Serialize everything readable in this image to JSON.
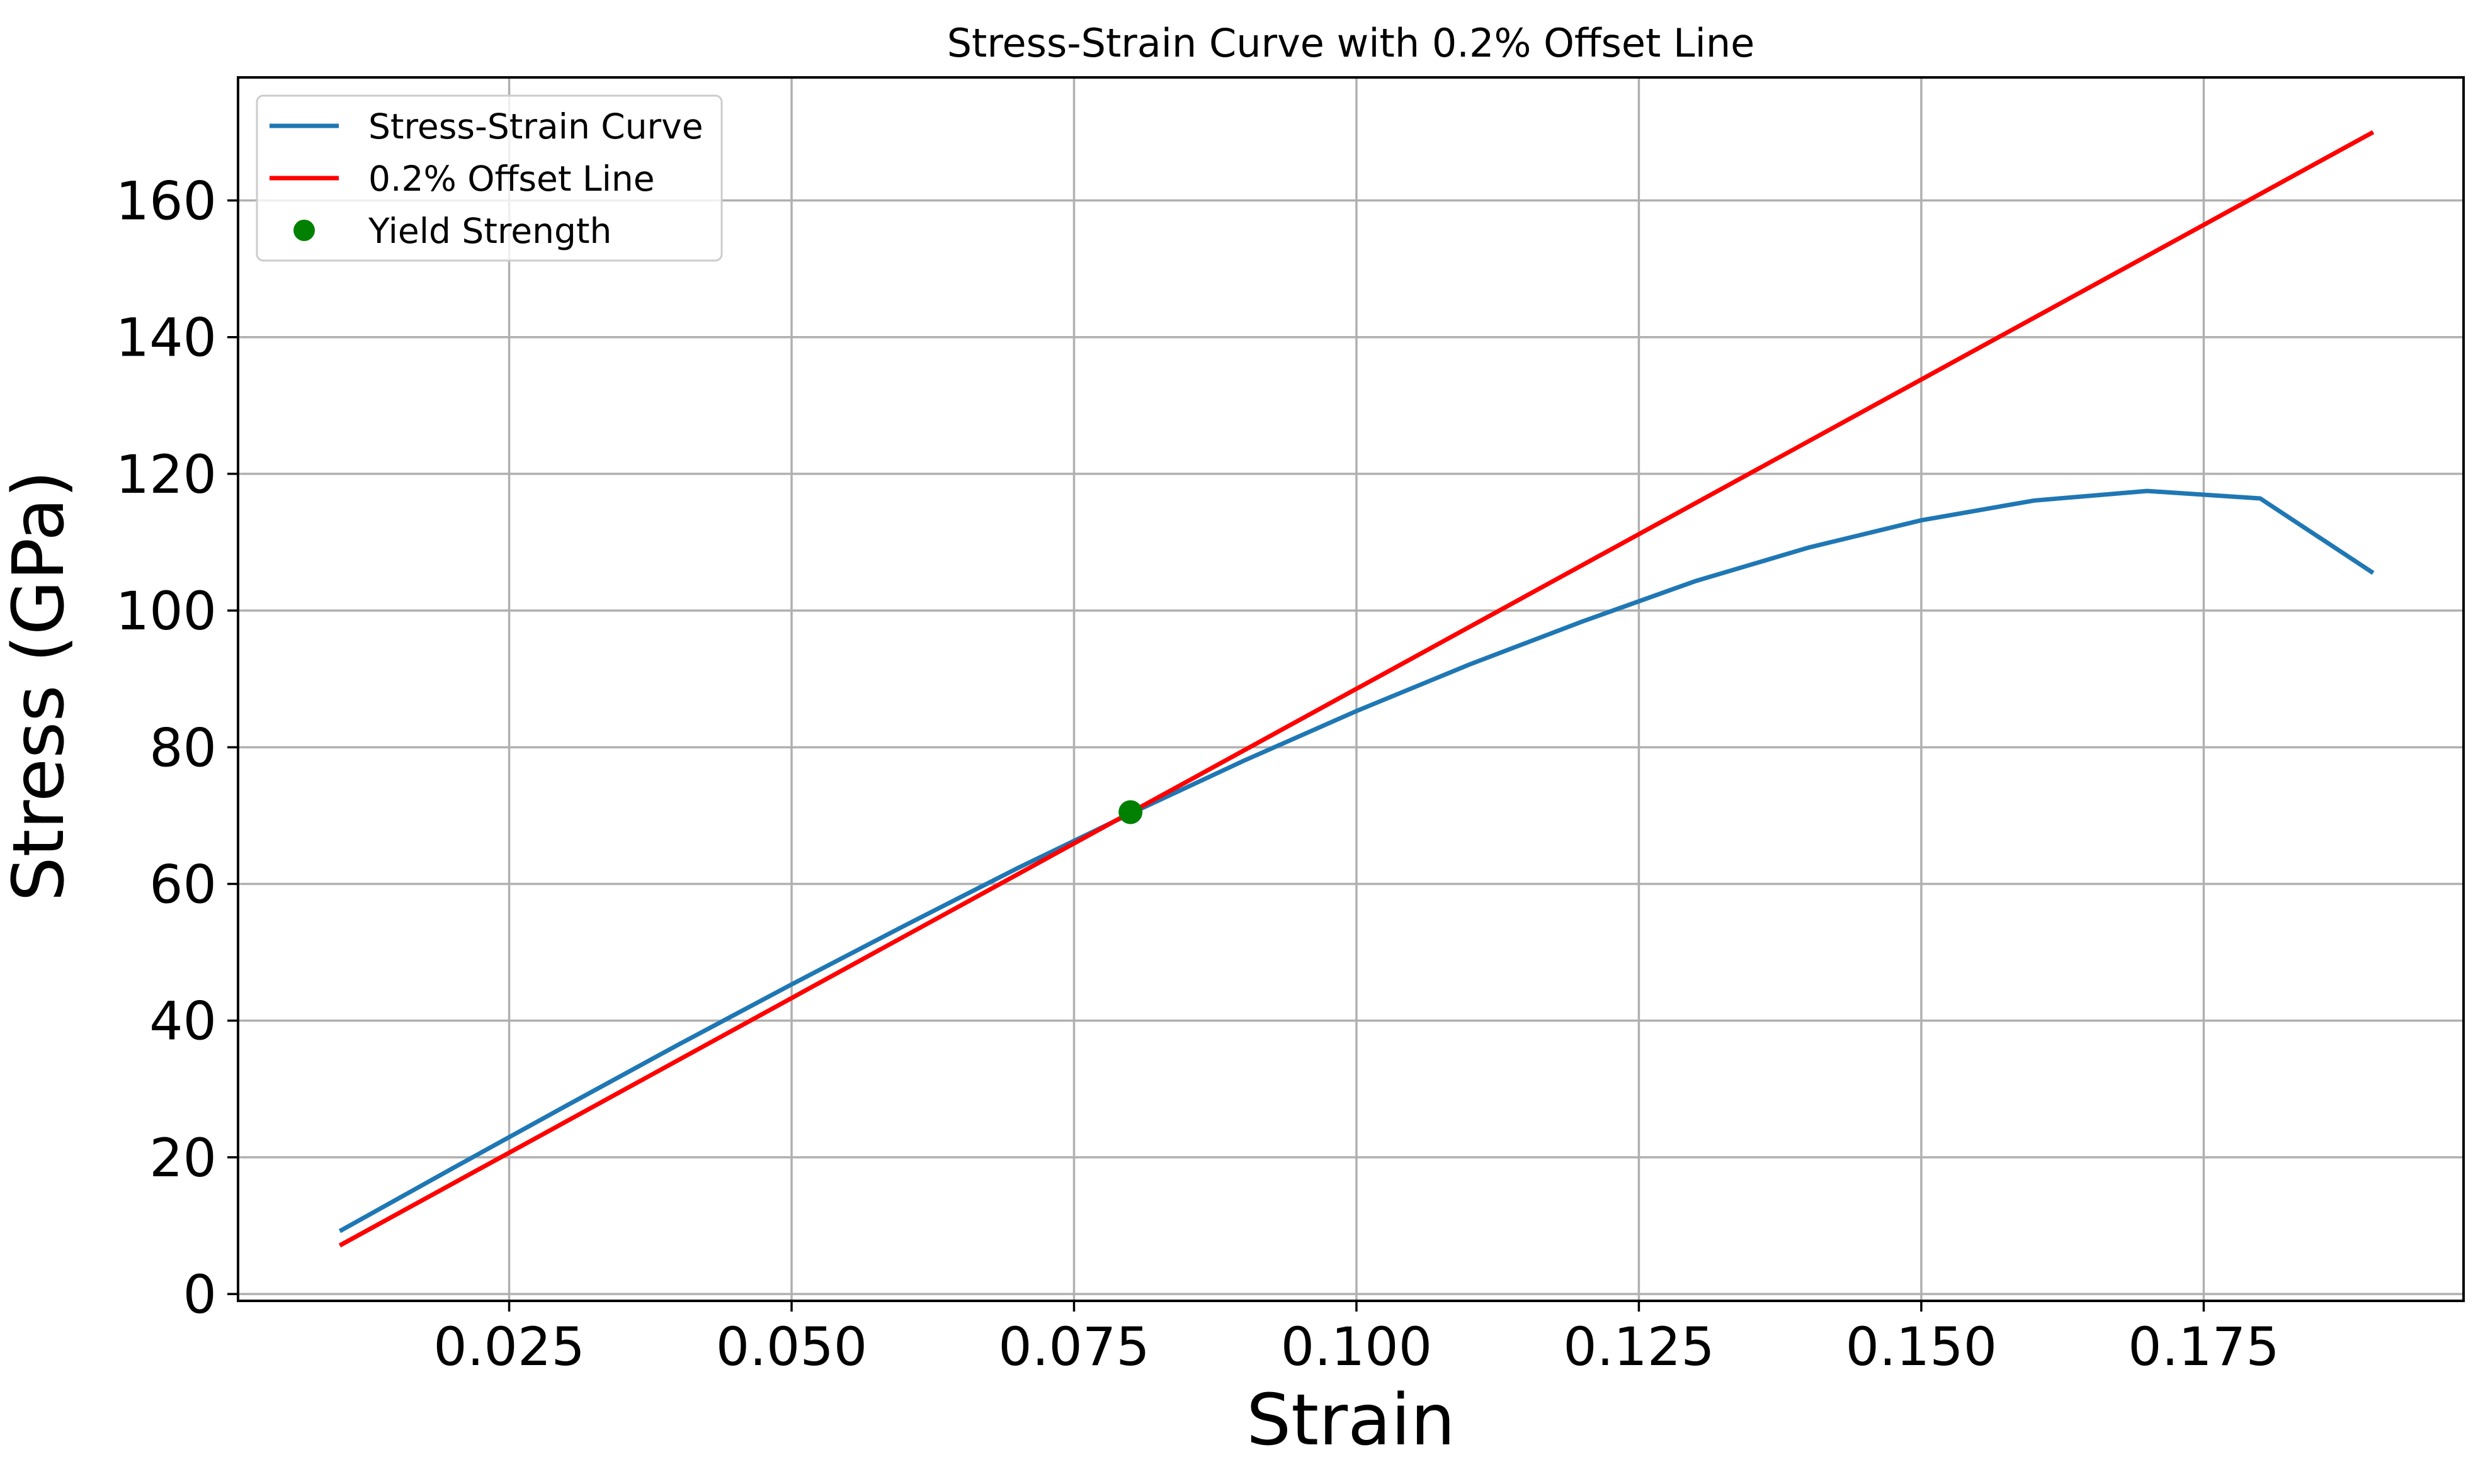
{
  "chart_data": {
    "type": "line",
    "title": "Stress-Strain Curve with 0.2% Offset Line",
    "xlabel": "Strain",
    "ylabel": "Stress (GPa)",
    "xlim": [
      0.001,
      0.198
    ],
    "ylim": [
      -1,
      178
    ],
    "x_ticks": [
      0.025,
      0.05,
      0.075,
      0.1,
      0.125,
      0.15,
      0.175
    ],
    "x_tick_labels": [
      "0.025",
      "0.050",
      "0.075",
      "0.100",
      "0.125",
      "0.150",
      "0.175"
    ],
    "y_ticks": [
      0,
      20,
      40,
      60,
      80,
      100,
      120,
      140,
      160
    ],
    "y_tick_labels": [
      "0",
      "20",
      "40",
      "60",
      "80",
      "100",
      "120",
      "140",
      "160"
    ],
    "grid": true,
    "legend_position": "top-left",
    "series": [
      {
        "name": "Stress-Strain Curve",
        "color": "#1f77b4",
        "kind": "line",
        "x": [
          0.01,
          0.02,
          0.03,
          0.04,
          0.05,
          0.06,
          0.07,
          0.08,
          0.09,
          0.1,
          0.11,
          0.12,
          0.13,
          0.14,
          0.15,
          0.16,
          0.17,
          0.18,
          0.19
        ],
        "y": [
          9.2,
          18.4,
          27.5,
          36.5,
          45.3,
          53.9,
          62.3,
          70.3,
          78.0,
          85.3,
          92.1,
          98.4,
          104.3,
          109.2,
          113.2,
          116.1,
          117.5,
          116.4,
          105.5
        ]
      },
      {
        "name": "0.2% Offset Line",
        "color": "#ff0000",
        "kind": "line",
        "x": [
          0.01,
          0.19
        ],
        "y": [
          7.1,
          170.0
        ]
      },
      {
        "name": "Yield Strength",
        "color": "#008000",
        "kind": "scatter",
        "x": [
          0.08
        ],
        "y": [
          70.5
        ]
      }
    ]
  }
}
